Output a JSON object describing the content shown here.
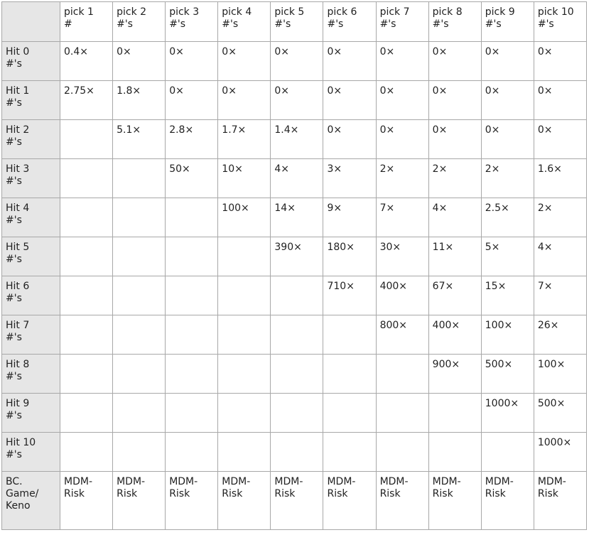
{
  "table": {
    "columns": [
      "pick 1\n#",
      "pick 2\n#'s",
      "pick 3\n#'s",
      "pick 4\n#'s",
      "pick 5\n#'s",
      "pick 6\n#'s",
      "pick 7\n#'s",
      "pick 8\n#'s",
      "pick 9\n#'s",
      "pick 10\n#'s"
    ],
    "rows": [
      {
        "label": "Hit 0\n#'s",
        "cells": [
          "0.4×",
          "0×",
          "0×",
          "0×",
          "0×",
          "0×",
          "0×",
          "0×",
          "0×",
          "0×"
        ]
      },
      {
        "label": "Hit 1\n#'s",
        "cells": [
          "2.75×",
          "1.8×",
          "0×",
          "0×",
          "0×",
          "0×",
          "0×",
          "0×",
          "0×",
          "0×"
        ]
      },
      {
        "label": "Hit 2\n#'s",
        "cells": [
          null,
          "5.1×",
          "2.8×",
          "1.7×",
          "1.4×",
          "0×",
          "0×",
          "0×",
          "0×",
          "0×"
        ]
      },
      {
        "label": "Hit 3\n#'s",
        "cells": [
          null,
          null,
          "50×",
          "10×",
          "4×",
          "3×",
          "2×",
          "2×",
          "2×",
          "1.6×"
        ]
      },
      {
        "label": "Hit 4\n#'s",
        "cells": [
          null,
          null,
          null,
          "100×",
          "14×",
          "9×",
          "7×",
          "4×",
          "2.5×",
          "2×"
        ]
      },
      {
        "label": "Hit 5\n#'s",
        "cells": [
          null,
          null,
          null,
          null,
          "390×",
          "180×",
          "30×",
          "11×",
          "5×",
          "4×"
        ]
      },
      {
        "label": "Hit 6\n#'s",
        "cells": [
          null,
          null,
          null,
          null,
          null,
          "710×",
          "400×",
          "67×",
          "15×",
          "7×"
        ]
      },
      {
        "label": "Hit 7\n#'s",
        "cells": [
          null,
          null,
          null,
          null,
          null,
          null,
          "800×",
          "400×",
          "100×",
          "26×"
        ]
      },
      {
        "label": "Hit 8\n#'s",
        "cells": [
          null,
          null,
          null,
          null,
          null,
          null,
          null,
          "900×",
          "500×",
          "100×"
        ]
      },
      {
        "label": "Hit 9\n#'s",
        "cells": [
          null,
          null,
          null,
          null,
          null,
          null,
          null,
          null,
          "1000×",
          "500×"
        ]
      },
      {
        "label": "Hit 10\n#'s",
        "cells": [
          null,
          null,
          null,
          null,
          null,
          null,
          null,
          null,
          null,
          "1000×"
        ]
      },
      {
        "label": "BC.\nGame/\nKeno",
        "cells": [
          "MDM-\nRisk",
          "MDM-\nRisk",
          "MDM-\nRisk",
          "MDM-\nRisk",
          "MDM-\nRisk",
          "MDM-\nRisk",
          "MDM-\nRisk",
          "MDM-\nRisk",
          "MDM-\nRisk",
          "MDM-\nRisk"
        ]
      }
    ]
  }
}
